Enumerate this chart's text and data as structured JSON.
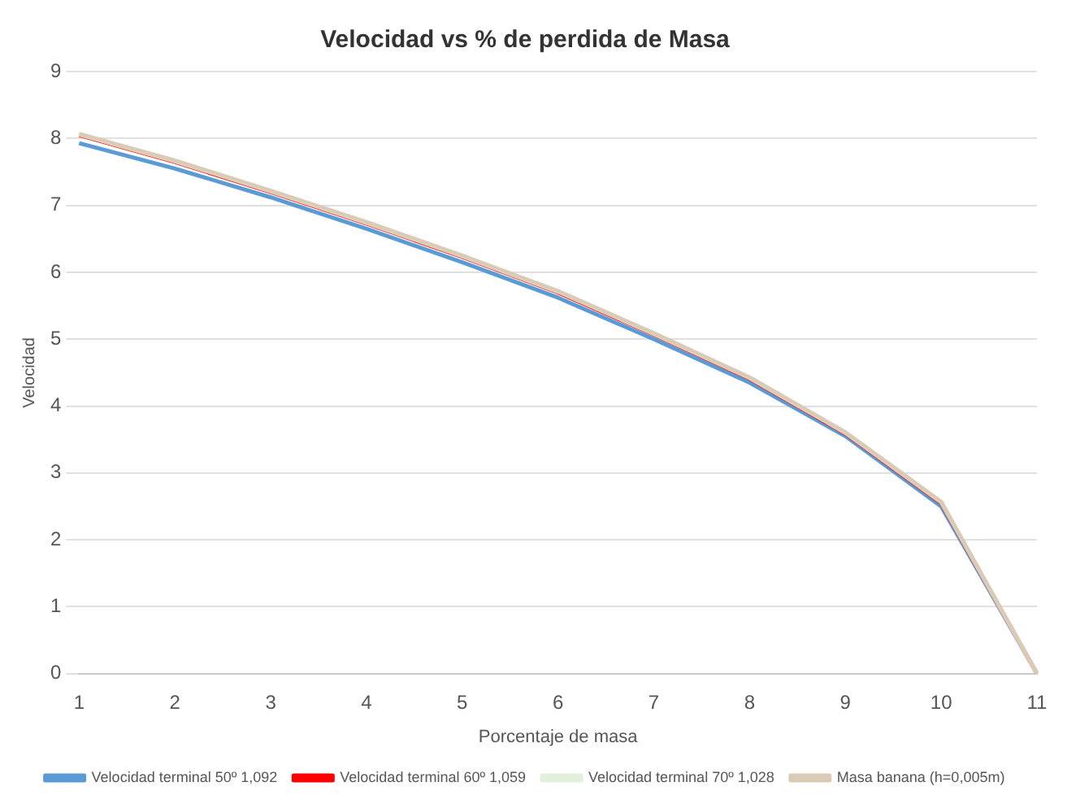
{
  "chart_data": {
    "type": "line",
    "title": "Velocidad vs % de perdida de Masa",
    "xlabel": "Porcentaje de masa",
    "ylabel": "Velocidad",
    "categories": [
      "1",
      "2",
      "3",
      "4",
      "5",
      "6",
      "7",
      "8",
      "9",
      "10",
      "11"
    ],
    "series": [
      {
        "name": "Velocidad terminal 50º 1,092",
        "color": "#5b9bd5",
        "values": [
          7.93,
          7.55,
          7.12,
          6.65,
          6.15,
          5.62,
          5.0,
          4.35,
          3.55,
          2.5,
          0
        ]
      },
      {
        "name": "Velocidad terminal 60º 1,059",
        "color": "#ff0000",
        "values": [
          8.05,
          7.65,
          7.2,
          6.73,
          6.23,
          5.7,
          5.07,
          4.41,
          3.59,
          2.55,
          0
        ]
      },
      {
        "name": "Velocidad terminal 70º 1,028",
        "color": "#e2efd9",
        "values": [
          8.06,
          7.66,
          7.21,
          6.74,
          6.24,
          5.71,
          5.08,
          4.42,
          3.6,
          2.56,
          0
        ]
      },
      {
        "name": "Masa banana (h=0,005m)",
        "color": "#d9cbb5",
        "values": [
          8.07,
          7.67,
          7.22,
          6.75,
          6.25,
          5.72,
          5.09,
          4.43,
          3.61,
          2.57,
          0
        ]
      }
    ],
    "ylim": [
      0,
      9
    ],
    "yticks": [
      0,
      1,
      2,
      3,
      4,
      5,
      6,
      7,
      8,
      9
    ],
    "grid": "y",
    "legend": "bottom",
    "marker": "none",
    "line_style": "solid"
  }
}
